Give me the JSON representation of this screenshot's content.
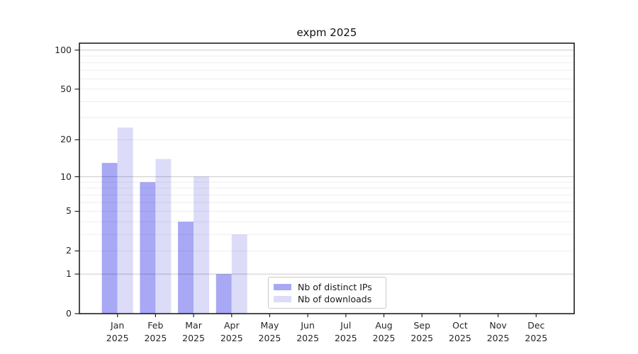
{
  "chart_data": {
    "type": "bar",
    "title": "expm 2025",
    "categories": [
      "Jan",
      "Feb",
      "Mar",
      "Apr",
      "May",
      "Jun",
      "Jul",
      "Aug",
      "Sep",
      "Oct",
      "Nov",
      "Dec"
    ],
    "x_year": "2025",
    "series": [
      {
        "name": "Nb of distinct IPs",
        "color": "#a8a8f5",
        "values": [
          13,
          9,
          4,
          1,
          0,
          0,
          0,
          0,
          0,
          0,
          0,
          0
        ]
      },
      {
        "name": "Nb of downloads",
        "color": "#dcdcf9",
        "values": [
          25,
          14,
          10,
          3,
          0,
          0,
          0,
          0,
          0,
          0,
          0,
          0
        ]
      }
    ],
    "y_scale": "log1p",
    "ylim": [
      0,
      113
    ],
    "y_ticks": [
      0,
      1,
      2,
      5,
      10,
      20,
      50,
      100
    ],
    "y_gridlines_major": [
      1,
      10,
      100
    ],
    "y_gridlines_minor": [
      2,
      3,
      4,
      5,
      6,
      7,
      8,
      9,
      20,
      30,
      40,
      50,
      60,
      70,
      80,
      90
    ],
    "grid": true,
    "legend_position": "lower center"
  }
}
